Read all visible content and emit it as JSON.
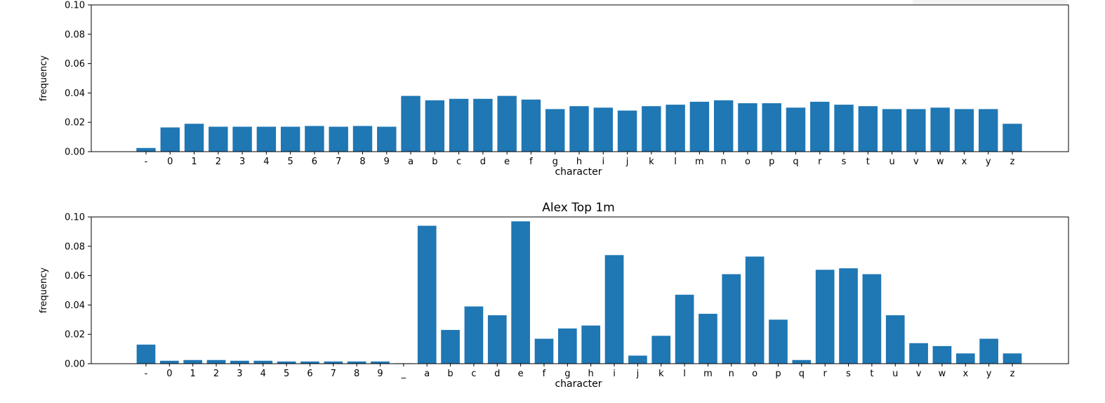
{
  "colors": {
    "bar": "#1f77b4",
    "axis": "#000000",
    "background": "#ffffff"
  },
  "chart_data": [
    {
      "type": "bar",
      "title": "",
      "xlabel": "character",
      "ylabel": "frequency",
      "ylim": [
        0,
        0.1
      ],
      "yticks": [
        "0.00",
        "0.02",
        "0.04",
        "0.06",
        "0.08",
        "0.10"
      ],
      "grid": false,
      "categories": [
        "-",
        "0",
        "1",
        "2",
        "3",
        "4",
        "5",
        "6",
        "7",
        "8",
        "9",
        "a",
        "b",
        "c",
        "d",
        "e",
        "f",
        "g",
        "h",
        "i",
        "j",
        "k",
        "l",
        "m",
        "n",
        "o",
        "p",
        "q",
        "r",
        "s",
        "t",
        "u",
        "v",
        "w",
        "x",
        "y",
        "z"
      ],
      "values": [
        0.0025,
        0.0165,
        0.019,
        0.017,
        0.017,
        0.017,
        0.017,
        0.0175,
        0.017,
        0.0175,
        0.017,
        0.038,
        0.035,
        0.036,
        0.036,
        0.038,
        0.0355,
        0.029,
        0.031,
        0.03,
        0.028,
        0.031,
        0.032,
        0.034,
        0.035,
        0.033,
        0.033,
        0.03,
        0.034,
        0.032,
        0.031,
        0.029,
        0.029,
        0.03,
        0.029,
        0.029,
        0.019
      ]
    },
    {
      "type": "bar",
      "title": "Alex Top 1m",
      "xlabel": "character",
      "ylabel": "frequency",
      "ylim": [
        0,
        0.1
      ],
      "yticks": [
        "0.00",
        "0.02",
        "0.04",
        "0.06",
        "0.08",
        "0.10"
      ],
      "grid": false,
      "categories": [
        "-",
        "0",
        "1",
        "2",
        "3",
        "4",
        "5",
        "6",
        "7",
        "8",
        "9",
        "_",
        "a",
        "b",
        "c",
        "d",
        "e",
        "f",
        "g",
        "h",
        "i",
        "j",
        "k",
        "l",
        "m",
        "n",
        "o",
        "p",
        "q",
        "r",
        "s",
        "t",
        "u",
        "v",
        "w",
        "x",
        "y",
        "z"
      ],
      "values": [
        0.013,
        0.002,
        0.0025,
        0.0025,
        0.002,
        0.002,
        0.0015,
        0.0015,
        0.0015,
        0.0015,
        0.0015,
        0.0003,
        0.094,
        0.023,
        0.039,
        0.033,
        0.097,
        0.017,
        0.024,
        0.026,
        0.074,
        0.0055,
        0.019,
        0.047,
        0.034,
        0.061,
        0.073,
        0.03,
        0.0025,
        0.064,
        0.065,
        0.061,
        0.033,
        0.014,
        0.012,
        0.007,
        0.017,
        0.007
      ]
    }
  ]
}
